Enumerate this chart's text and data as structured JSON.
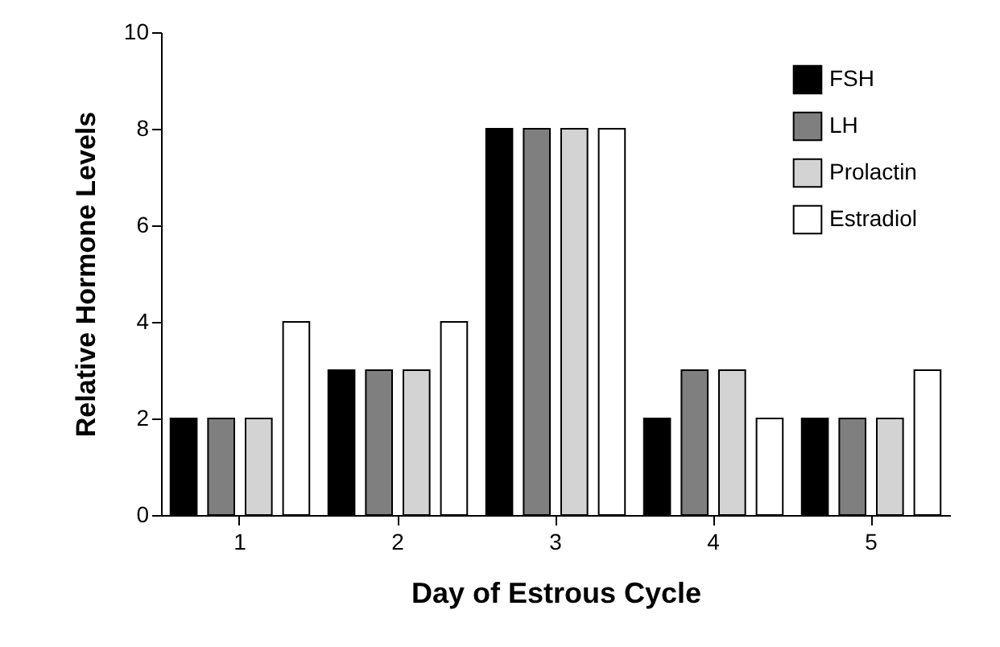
{
  "chart_data": {
    "type": "bar",
    "xlabel": "Day of Estrous Cycle",
    "ylabel": "Relative Hormone Levels",
    "categories": [
      "1",
      "2",
      "3",
      "4",
      "5"
    ],
    "series": [
      {
        "name": "FSH",
        "color": "#000000",
        "values": [
          2,
          3,
          8,
          2,
          2
        ]
      },
      {
        "name": "LH",
        "color": "#7f7f7f",
        "values": [
          2,
          3,
          8,
          3,
          2
        ]
      },
      {
        "name": "Prolactin",
        "color": "#d3d3d3",
        "values": [
          2,
          3,
          8,
          3,
          2
        ]
      },
      {
        "name": "Estradiol",
        "color": "#ffffff",
        "values": [
          4,
          4,
          8,
          2,
          3
        ]
      }
    ],
    "ylim": [
      0,
      10
    ],
    "yticks": [
      0,
      2,
      4,
      6,
      8,
      10
    ],
    "grid": false,
    "legend": "top right"
  }
}
